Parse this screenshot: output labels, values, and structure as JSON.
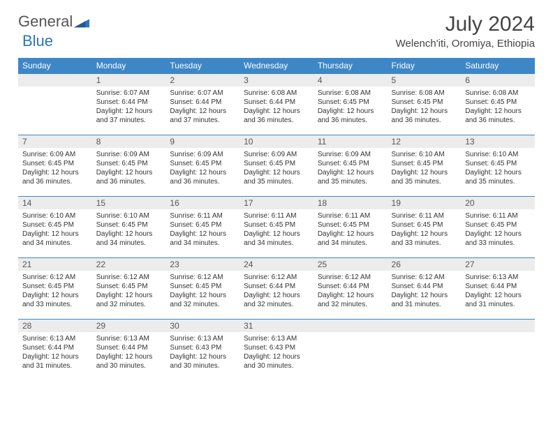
{
  "brand": {
    "part1": "General",
    "part2": "Blue",
    "mark_color": "#2e75b6"
  },
  "title": "July 2024",
  "location": "Welench'iti, Oromiya, Ethiopia",
  "colors": {
    "header_bg": "#3d87c7",
    "daynum_bg": "#ececec",
    "border": "#3d87c7",
    "text": "#333333",
    "brand_gray": "#555555",
    "brand_blue": "#2e75b6"
  },
  "fonts": {
    "title_size": 30,
    "header_size": 12,
    "daynum_size": 12,
    "detail_size": 10
  },
  "weekdays": [
    "Sunday",
    "Monday",
    "Tuesday",
    "Wednesday",
    "Thursday",
    "Friday",
    "Saturday"
  ],
  "weeks": [
    [
      null,
      {
        "n": "1",
        "sr": "6:07 AM",
        "ss": "6:44 PM",
        "dl": "12 hours and 37 minutes."
      },
      {
        "n": "2",
        "sr": "6:07 AM",
        "ss": "6:44 PM",
        "dl": "12 hours and 37 minutes."
      },
      {
        "n": "3",
        "sr": "6:08 AM",
        "ss": "6:44 PM",
        "dl": "12 hours and 36 minutes."
      },
      {
        "n": "4",
        "sr": "6:08 AM",
        "ss": "6:45 PM",
        "dl": "12 hours and 36 minutes."
      },
      {
        "n": "5",
        "sr": "6:08 AM",
        "ss": "6:45 PM",
        "dl": "12 hours and 36 minutes."
      },
      {
        "n": "6",
        "sr": "6:08 AM",
        "ss": "6:45 PM",
        "dl": "12 hours and 36 minutes."
      }
    ],
    [
      {
        "n": "7",
        "sr": "6:09 AM",
        "ss": "6:45 PM",
        "dl": "12 hours and 36 minutes."
      },
      {
        "n": "8",
        "sr": "6:09 AM",
        "ss": "6:45 PM",
        "dl": "12 hours and 36 minutes."
      },
      {
        "n": "9",
        "sr": "6:09 AM",
        "ss": "6:45 PM",
        "dl": "12 hours and 36 minutes."
      },
      {
        "n": "10",
        "sr": "6:09 AM",
        "ss": "6:45 PM",
        "dl": "12 hours and 35 minutes."
      },
      {
        "n": "11",
        "sr": "6:09 AM",
        "ss": "6:45 PM",
        "dl": "12 hours and 35 minutes."
      },
      {
        "n": "12",
        "sr": "6:10 AM",
        "ss": "6:45 PM",
        "dl": "12 hours and 35 minutes."
      },
      {
        "n": "13",
        "sr": "6:10 AM",
        "ss": "6:45 PM",
        "dl": "12 hours and 35 minutes."
      }
    ],
    [
      {
        "n": "14",
        "sr": "6:10 AM",
        "ss": "6:45 PM",
        "dl": "12 hours and 34 minutes."
      },
      {
        "n": "15",
        "sr": "6:10 AM",
        "ss": "6:45 PM",
        "dl": "12 hours and 34 minutes."
      },
      {
        "n": "16",
        "sr": "6:11 AM",
        "ss": "6:45 PM",
        "dl": "12 hours and 34 minutes."
      },
      {
        "n": "17",
        "sr": "6:11 AM",
        "ss": "6:45 PM",
        "dl": "12 hours and 34 minutes."
      },
      {
        "n": "18",
        "sr": "6:11 AM",
        "ss": "6:45 PM",
        "dl": "12 hours and 34 minutes."
      },
      {
        "n": "19",
        "sr": "6:11 AM",
        "ss": "6:45 PM",
        "dl": "12 hours and 33 minutes."
      },
      {
        "n": "20",
        "sr": "6:11 AM",
        "ss": "6:45 PM",
        "dl": "12 hours and 33 minutes."
      }
    ],
    [
      {
        "n": "21",
        "sr": "6:12 AM",
        "ss": "6:45 PM",
        "dl": "12 hours and 33 minutes."
      },
      {
        "n": "22",
        "sr": "6:12 AM",
        "ss": "6:45 PM",
        "dl": "12 hours and 32 minutes."
      },
      {
        "n": "23",
        "sr": "6:12 AM",
        "ss": "6:45 PM",
        "dl": "12 hours and 32 minutes."
      },
      {
        "n": "24",
        "sr": "6:12 AM",
        "ss": "6:44 PM",
        "dl": "12 hours and 32 minutes."
      },
      {
        "n": "25",
        "sr": "6:12 AM",
        "ss": "6:44 PM",
        "dl": "12 hours and 32 minutes."
      },
      {
        "n": "26",
        "sr": "6:12 AM",
        "ss": "6:44 PM",
        "dl": "12 hours and 31 minutes."
      },
      {
        "n": "27",
        "sr": "6:13 AM",
        "ss": "6:44 PM",
        "dl": "12 hours and 31 minutes."
      }
    ],
    [
      {
        "n": "28",
        "sr": "6:13 AM",
        "ss": "6:44 PM",
        "dl": "12 hours and 31 minutes."
      },
      {
        "n": "29",
        "sr": "6:13 AM",
        "ss": "6:44 PM",
        "dl": "12 hours and 30 minutes."
      },
      {
        "n": "30",
        "sr": "6:13 AM",
        "ss": "6:43 PM",
        "dl": "12 hours and 30 minutes."
      },
      {
        "n": "31",
        "sr": "6:13 AM",
        "ss": "6:43 PM",
        "dl": "12 hours and 30 minutes."
      },
      null,
      null,
      null
    ]
  ],
  "labels": {
    "sunrise": "Sunrise:",
    "sunset": "Sunset:",
    "daylight": "Daylight:"
  }
}
